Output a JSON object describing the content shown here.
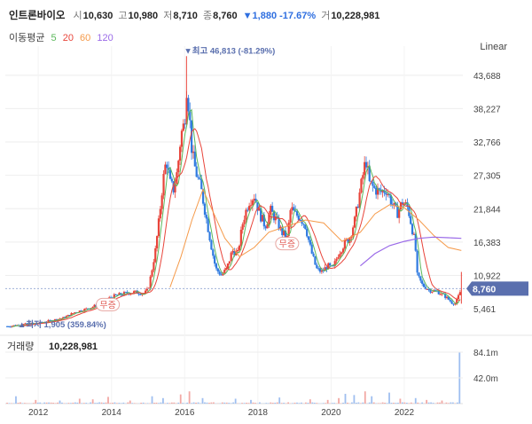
{
  "header": {
    "name": "인트론바이오",
    "open_label": "시",
    "open": "10,630",
    "high_label": "고",
    "high": "10,980",
    "low_label": "저",
    "low": "8,710",
    "close_label": "종",
    "close": "8,760",
    "change": "▼1,880 -17.67%",
    "volume_label": "거",
    "volume": "10,228,981"
  },
  "ma": {
    "label": "이동평균",
    "items": [
      {
        "period": "5",
        "color": "#5bb85b"
      },
      {
        "period": "20",
        "color": "#e8443a"
      },
      {
        "period": "60",
        "color": "#f59a4a"
      },
      {
        "period": "120",
        "color": "#9a6ae8"
      }
    ]
  },
  "scale_button": "Linear",
  "colors": {
    "up": "#e8443a",
    "down": "#2f7ae0",
    "grid": "#eeeeee",
    "badge": "#5a6fae"
  },
  "chart_data": {
    "type": "candlestick",
    "y_ticks": [
      "43,688",
      "38,227",
      "32,766",
      "27,305",
      "21,844",
      "16,383",
      "10,922",
      "5,461"
    ],
    "x_ticks": [
      "2012",
      "2014",
      "2016",
      "2018",
      "2020",
      "2022"
    ],
    "ylim": [
      2000,
      47000
    ],
    "last_price": 8760,
    "last_price_label": "8,760",
    "max_annotation": "최고 46,813 (-81.29%)",
    "max_value": 46813,
    "min_annotation": "최저 1,905 (359.84%)",
    "min_value": 1905,
    "rights_label": "무증",
    "rights_events": [
      {
        "x": 2013.9
      },
      {
        "x": 2018.8
      }
    ],
    "volume_label": "거래량",
    "volume_value": "10,228,981",
    "volume_ticks": [
      "84.1m",
      "42.0m"
    ],
    "volume_ylim": [
      0,
      84100000
    ],
    "x_range": [
      2011.1,
      2023.6
    ],
    "price_path": [
      [
        2011.15,
        2600
      ],
      [
        2011.6,
        2900
      ],
      [
        2012.0,
        3100
      ],
      [
        2012.4,
        3600
      ],
      [
        2012.7,
        4000
      ],
      [
        2013.0,
        4900
      ],
      [
        2013.4,
        5600
      ],
      [
        2013.7,
        6300
      ],
      [
        2014.0,
        7400
      ],
      [
        2014.3,
        7900
      ],
      [
        2014.6,
        8200
      ],
      [
        2014.9,
        8000
      ],
      [
        2015.0,
        8600
      ],
      [
        2015.08,
        11000
      ],
      [
        2015.2,
        15000
      ],
      [
        2015.3,
        20000
      ],
      [
        2015.4,
        26000
      ],
      [
        2015.5,
        30000
      ],
      [
        2015.6,
        26000
      ],
      [
        2015.7,
        25000
      ],
      [
        2015.8,
        28000
      ],
      [
        2015.9,
        34000
      ],
      [
        2016.0,
        36000
      ],
      [
        2016.05,
        42000
      ],
      [
        2016.12,
        38000
      ],
      [
        2016.2,
        31000
      ],
      [
        2016.3,
        28000
      ],
      [
        2016.45,
        25000
      ],
      [
        2016.6,
        20000
      ],
      [
        2016.75,
        15000
      ],
      [
        2016.85,
        12000
      ],
      [
        2017.0,
        11000
      ],
      [
        2017.15,
        12000
      ],
      [
        2017.3,
        15000
      ],
      [
        2017.45,
        14500
      ],
      [
        2017.6,
        20000
      ],
      [
        2017.75,
        23000
      ],
      [
        2017.9,
        24000
      ],
      [
        2018.05,
        21000
      ],
      [
        2018.2,
        19000
      ],
      [
        2018.35,
        21500
      ],
      [
        2018.5,
        20000
      ],
      [
        2018.65,
        18000
      ],
      [
        2018.8,
        17000
      ],
      [
        2018.9,
        22000
      ],
      [
        2019.0,
        21000
      ],
      [
        2019.15,
        20500
      ],
      [
        2019.3,
        19000
      ],
      [
        2019.45,
        15000
      ],
      [
        2019.6,
        12000
      ],
      [
        2019.75,
        11500
      ],
      [
        2019.9,
        12500
      ],
      [
        2020.05,
        12000
      ],
      [
        2020.2,
        14500
      ],
      [
        2020.35,
        16000
      ],
      [
        2020.5,
        17000
      ],
      [
        2020.65,
        20000
      ],
      [
        2020.8,
        25000
      ],
      [
        2020.95,
        30000
      ],
      [
        2021.05,
        26000
      ],
      [
        2021.2,
        25000
      ],
      [
        2021.35,
        24500
      ],
      [
        2021.5,
        25000
      ],
      [
        2021.65,
        23000
      ],
      [
        2021.8,
        21000
      ],
      [
        2021.95,
        23000
      ],
      [
        2022.1,
        22000
      ],
      [
        2022.2,
        19000
      ],
      [
        2022.3,
        16000
      ],
      [
        2022.35,
        11000
      ],
      [
        2022.5,
        9300
      ],
      [
        2022.7,
        8500
      ],
      [
        2022.9,
        8300
      ],
      [
        2023.1,
        7600
      ],
      [
        2023.3,
        6500
      ],
      [
        2023.4,
        6300
      ],
      [
        2023.5,
        7800
      ],
      [
        2023.56,
        8760
      ]
    ],
    "ma60_path": [
      [
        2015.6,
        9000
      ],
      [
        2015.9,
        14000
      ],
      [
        2016.2,
        20000
      ],
      [
        2016.5,
        25000
      ],
      [
        2016.8,
        21000
      ],
      [
        2017.1,
        17000
      ],
      [
        2017.5,
        14000
      ],
      [
        2017.9,
        15500
      ],
      [
        2018.3,
        18000
      ],
      [
        2018.8,
        19000
      ],
      [
        2019.3,
        20000
      ],
      [
        2019.8,
        19500
      ],
      [
        2020.3,
        16500
      ],
      [
        2020.8,
        18000
      ],
      [
        2021.2,
        21000
      ],
      [
        2021.6,
        22500
      ],
      [
        2022.0,
        22000
      ],
      [
        2022.4,
        20000
      ],
      [
        2022.8,
        17500
      ],
      [
        2023.2,
        15500
      ],
      [
        2023.56,
        15000
      ]
    ],
    "ma120_path": [
      [
        2020.8,
        12500
      ],
      [
        2021.2,
        14500
      ],
      [
        2021.6,
        15800
      ],
      [
        2022.0,
        16500
      ],
      [
        2022.4,
        17000
      ],
      [
        2022.8,
        17200
      ],
      [
        2023.2,
        17100
      ],
      [
        2023.56,
        17000
      ]
    ],
    "volume_spikes": [
      [
        2011.4,
        12000000
      ],
      [
        2011.9,
        6000000
      ],
      [
        2012.6,
        5000000
      ],
      [
        2013.1,
        8000000
      ],
      [
        2013.5,
        7000000
      ],
      [
        2013.9,
        11000000
      ],
      [
        2014.5,
        5000000
      ],
      [
        2015.1,
        12000000
      ],
      [
        2015.4,
        9000000
      ],
      [
        2015.9,
        15000000
      ],
      [
        2016.1,
        20000000
      ],
      [
        2016.5,
        9000000
      ],
      [
        2017.4,
        8000000
      ],
      [
        2017.8,
        6000000
      ],
      [
        2018.6,
        10000000
      ],
      [
        2019.4,
        7000000
      ],
      [
        2019.9,
        6000000
      ],
      [
        2020.2,
        9000000
      ],
      [
        2020.4,
        16000000
      ],
      [
        2020.6,
        14000000
      ],
      [
        2020.9,
        20000000
      ],
      [
        2021.1,
        12000000
      ],
      [
        2021.6,
        18000000
      ],
      [
        2021.9,
        8000000
      ],
      [
        2022.3,
        9000000
      ],
      [
        2022.6,
        6000000
      ],
      [
        2023.0,
        5000000
      ],
      [
        2023.52,
        84100000
      ]
    ]
  }
}
